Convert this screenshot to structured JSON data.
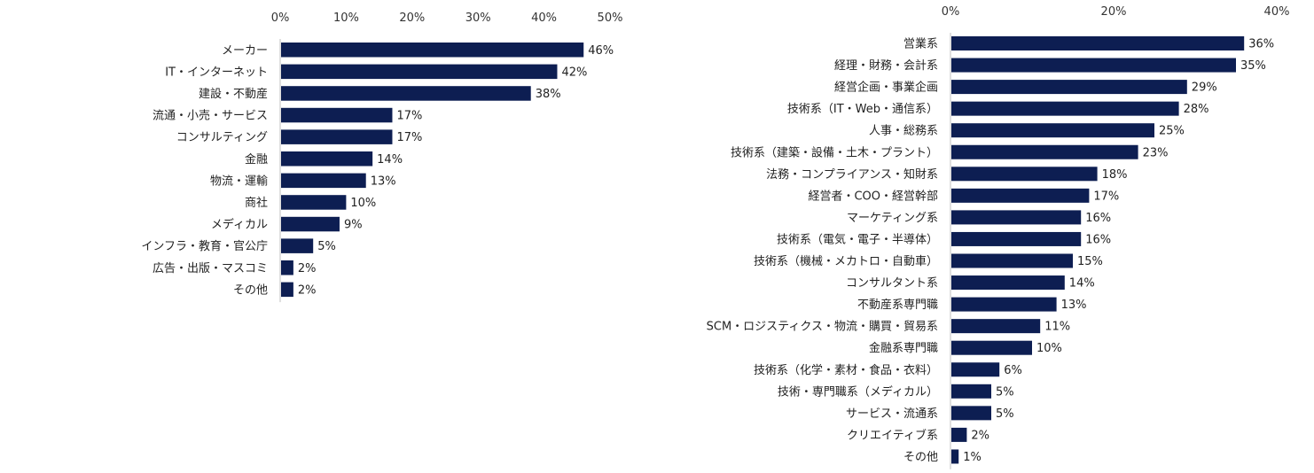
{
  "chart_data": [
    {
      "type": "bar",
      "orientation": "horizontal",
      "title": "",
      "xlabel": "",
      "ylabel": "",
      "xlim": [
        0,
        50
      ],
      "ticks": [
        "0%",
        "10%",
        "20%",
        "30%",
        "40%",
        "50%"
      ],
      "tick_values": [
        0,
        10,
        20,
        30,
        40,
        50
      ],
      "grid": false,
      "bar_color": "#0d1e52",
      "categories": [
        "メーカー",
        "IT・インターネット",
        "建設・不動産",
        "流通・小売・サービス",
        "コンサルティング",
        "金融",
        "物流・運輸",
        "商社",
        "メディカル",
        "インフラ・教育・官公庁",
        "広告・出版・マスコミ",
        "その他"
      ],
      "values": [
        46,
        42,
        38,
        17,
        17,
        14,
        13,
        10,
        9,
        5,
        2,
        2
      ],
      "labels": [
        "46%",
        "42%",
        "38%",
        "17%",
        "17%",
        "14%",
        "13%",
        "10%",
        "9%",
        "5%",
        "2%",
        "2%"
      ]
    },
    {
      "type": "bar",
      "orientation": "horizontal",
      "title": "",
      "xlabel": "",
      "ylabel": "",
      "xlim": [
        0,
        40
      ],
      "ticks": [
        "0%",
        "20%",
        "40%"
      ],
      "tick_values": [
        0,
        20,
        40
      ],
      "grid": false,
      "bar_color": "#0d1e52",
      "categories": [
        "営業系",
        "経理・財務・会計系",
        "経営企画・事業企画",
        "技術系（IT・Web・通信系）",
        "人事・総務系",
        "技術系（建築・設備・土木・プラント）",
        "法務・コンプライアンス・知財系",
        "経営者・COO・経営幹部",
        "マーケティング系",
        "技術系（電気・電子・半導体）",
        "技術系（機械・メカトロ・自動車）",
        "コンサルタント系",
        "不動産系専門職",
        "SCM・ロジスティクス・物流・購買・貿易系",
        "金融系専門職",
        "技術系（化学・素材・食品・衣料）",
        "技術・専門職系（メディカル）",
        "サービス・流通系",
        "クリエイティブ系",
        "その他"
      ],
      "values": [
        36,
        35,
        29,
        28,
        25,
        23,
        18,
        17,
        16,
        16,
        15,
        14,
        13,
        11,
        10,
        6,
        5,
        5,
        2,
        1
      ],
      "labels": [
        "36%",
        "35%",
        "29%",
        "28%",
        "25%",
        "23%",
        "18%",
        "17%",
        "16%",
        "16%",
        "15%",
        "14%",
        "13%",
        "11%",
        "10%",
        "6%",
        "5%",
        "5%",
        "2%",
        "1%"
      ]
    }
  ]
}
